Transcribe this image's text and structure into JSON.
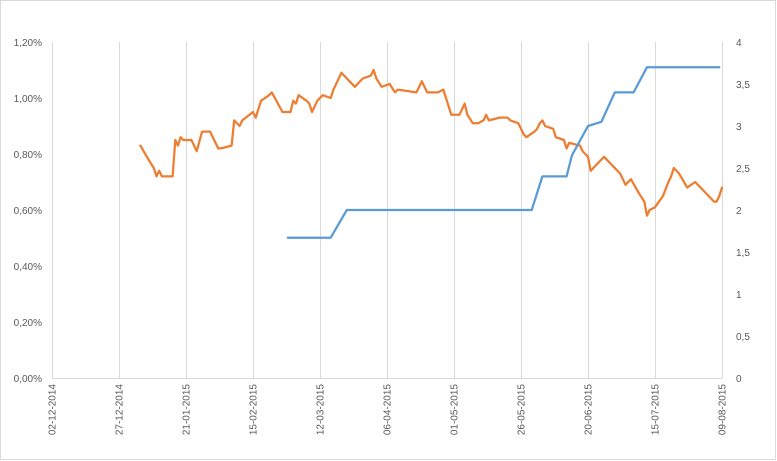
{
  "chart_data": {
    "type": "line",
    "title": "",
    "xlabel": "",
    "ylabel": "",
    "y2label": "",
    "grid": "vertical gridlines only",
    "legend": "none",
    "x_axis": {
      "ticks": [
        "02-12-2014",
        "27-12-2014",
        "21-01-2015",
        "15-02-2015",
        "12-03-2015",
        "06-04-2015",
        "01-05-2015",
        "26-05-2015",
        "20-06-2015",
        "15-07-2015",
        "09-08-2015"
      ]
    },
    "y_axis_left": {
      "range": [
        0,
        1.2
      ],
      "ticks": [
        "0,00%",
        "0,20%",
        "0,40%",
        "0,60%",
        "0,80%",
        "1,00%",
        "1,20%"
      ],
      "tick_values": [
        0,
        0.2,
        0.4,
        0.6,
        0.8,
        1.0,
        1.2
      ]
    },
    "y_axis_right": {
      "range": [
        0,
        4
      ],
      "ticks": [
        "0",
        "0,5",
        "1",
        "1,5",
        "2",
        "2,5",
        "3",
        "3,5",
        "4"
      ],
      "tick_values": [
        0,
        0.5,
        1,
        1.5,
        2,
        2.5,
        3,
        3.5,
        4
      ]
    },
    "colors": {
      "orange_series": "#ED7D31",
      "blue_series": "#5B9BD5",
      "grid": "#d9d9d9",
      "text": "#595959"
    },
    "series": [
      {
        "axis": "left",
        "unit": "%",
        "color": "#ED7D31",
        "points": [
          [
            "2015-01-04",
            0.83
          ],
          [
            "2015-01-07",
            0.78
          ],
          [
            "2015-01-09",
            0.75
          ],
          [
            "2015-01-10",
            0.72
          ],
          [
            "2015-01-11",
            0.74
          ],
          [
            "2015-01-12",
            0.72
          ],
          [
            "2015-01-16",
            0.72
          ],
          [
            "2015-01-17",
            0.85
          ],
          [
            "2015-01-18",
            0.83
          ],
          [
            "2015-01-19",
            0.86
          ],
          [
            "2015-01-20",
            0.85
          ],
          [
            "2015-01-23",
            0.85
          ],
          [
            "2015-01-25",
            0.81
          ],
          [
            "2015-01-27",
            0.88
          ],
          [
            "2015-01-30",
            0.88
          ],
          [
            "2015-02-02",
            0.82
          ],
          [
            "2015-02-03",
            0.82
          ],
          [
            "2015-02-07",
            0.83
          ],
          [
            "2015-02-08",
            0.92
          ],
          [
            "2015-02-10",
            0.9
          ],
          [
            "2015-02-11",
            0.92
          ],
          [
            "2015-02-15",
            0.95
          ],
          [
            "2015-02-16",
            0.93
          ],
          [
            "2015-02-18",
            0.99
          ],
          [
            "2015-02-21",
            1.01
          ],
          [
            "2015-02-22",
            1.02
          ],
          [
            "2015-02-26",
            0.95
          ],
          [
            "2015-03-01",
            0.95
          ],
          [
            "2015-03-02",
            0.99
          ],
          [
            "2015-03-03",
            0.98
          ],
          [
            "2015-03-04",
            1.01
          ],
          [
            "2015-03-07",
            0.99
          ],
          [
            "2015-03-08",
            0.98
          ],
          [
            "2015-03-09",
            0.95
          ],
          [
            "2015-03-11",
            0.99
          ],
          [
            "2015-03-13",
            1.01
          ],
          [
            "2015-03-16",
            1.0
          ],
          [
            "2015-03-17",
            1.03
          ],
          [
            "2015-03-18",
            1.05
          ],
          [
            "2015-03-20",
            1.09
          ],
          [
            "2015-03-22",
            1.07
          ],
          [
            "2015-03-25",
            1.04
          ],
          [
            "2015-03-26",
            1.05
          ],
          [
            "2015-03-28",
            1.07
          ],
          [
            "2015-03-31",
            1.08
          ],
          [
            "2015-04-01",
            1.1
          ],
          [
            "2015-04-02",
            1.07
          ],
          [
            "2015-04-04",
            1.04
          ],
          [
            "2015-04-07",
            1.05
          ],
          [
            "2015-04-09",
            1.02
          ],
          [
            "2015-04-10",
            1.03
          ],
          [
            "2015-04-17",
            1.02
          ],
          [
            "2015-04-19",
            1.06
          ],
          [
            "2015-04-21",
            1.02
          ],
          [
            "2015-04-25",
            1.02
          ],
          [
            "2015-04-27",
            1.03
          ],
          [
            "2015-04-28",
            1.0
          ],
          [
            "2015-04-30",
            0.94
          ],
          [
            "2015-05-03",
            0.94
          ],
          [
            "2015-05-05",
            0.98
          ],
          [
            "2015-05-06",
            0.94
          ],
          [
            "2015-05-08",
            0.91
          ],
          [
            "2015-05-10",
            0.91
          ],
          [
            "2015-05-12",
            0.92
          ],
          [
            "2015-05-13",
            0.94
          ],
          [
            "2015-05-14",
            0.92
          ],
          [
            "2015-05-18",
            0.93
          ],
          [
            "2015-05-20",
            0.93
          ],
          [
            "2015-05-21",
            0.93
          ],
          [
            "2015-05-22",
            0.92
          ],
          [
            "2015-05-25",
            0.91
          ],
          [
            "2015-05-27",
            0.87
          ],
          [
            "2015-05-28",
            0.86
          ],
          [
            "2015-05-31",
            0.88
          ],
          [
            "2015-06-01",
            0.89
          ],
          [
            "2015-06-02",
            0.91
          ],
          [
            "2015-06-03",
            0.92
          ],
          [
            "2015-06-04",
            0.9
          ],
          [
            "2015-06-07",
            0.89
          ],
          [
            "2015-06-08",
            0.86
          ],
          [
            "2015-06-11",
            0.85
          ],
          [
            "2015-06-12",
            0.82
          ],
          [
            "2015-06-13",
            0.84
          ],
          [
            "2015-06-17",
            0.83
          ],
          [
            "2015-06-18",
            0.81
          ],
          [
            "2015-06-19",
            0.8
          ],
          [
            "2015-06-20",
            0.79
          ],
          [
            "2015-06-21",
            0.74
          ],
          [
            "2015-06-24",
            0.77
          ],
          [
            "2015-06-26",
            0.79
          ],
          [
            "2015-06-28",
            0.77
          ],
          [
            "2015-07-01",
            0.74
          ],
          [
            "2015-07-02",
            0.73
          ],
          [
            "2015-07-04",
            0.69
          ],
          [
            "2015-07-06",
            0.71
          ],
          [
            "2015-07-09",
            0.66
          ],
          [
            "2015-07-11",
            0.63
          ],
          [
            "2015-07-12",
            0.58
          ],
          [
            "2015-07-13",
            0.6
          ],
          [
            "2015-07-15",
            0.61
          ],
          [
            "2015-07-18",
            0.65
          ],
          [
            "2015-07-20",
            0.7
          ],
          [
            "2015-07-21",
            0.72
          ],
          [
            "2015-07-22",
            0.75
          ],
          [
            "2015-07-24",
            0.73
          ],
          [
            "2015-07-27",
            0.68
          ],
          [
            "2015-07-30",
            0.7
          ],
          [
            "2015-08-01",
            0.68
          ],
          [
            "2015-08-04",
            0.65
          ],
          [
            "2015-08-06",
            0.63
          ],
          [
            "2015-08-07",
            0.63
          ],
          [
            "2015-08-08",
            0.65
          ],
          [
            "2015-08-09",
            0.68
          ]
        ]
      },
      {
        "axis": "right",
        "color": "#5B9BD5",
        "points": [
          [
            "2015-02-28",
            1.67
          ],
          [
            "2015-03-16",
            1.67
          ],
          [
            "2015-03-22",
            2.0
          ],
          [
            "2015-05-30",
            2.0
          ],
          [
            "2015-06-03",
            2.4
          ],
          [
            "2015-06-12",
            2.4
          ],
          [
            "2015-06-14",
            2.65
          ],
          [
            "2015-06-20",
            3.0
          ],
          [
            "2015-06-25",
            3.05
          ],
          [
            "2015-06-30",
            3.4
          ],
          [
            "2015-07-07",
            3.4
          ],
          [
            "2015-07-12",
            3.7
          ],
          [
            "2015-08-08",
            3.7
          ]
        ]
      }
    ]
  }
}
